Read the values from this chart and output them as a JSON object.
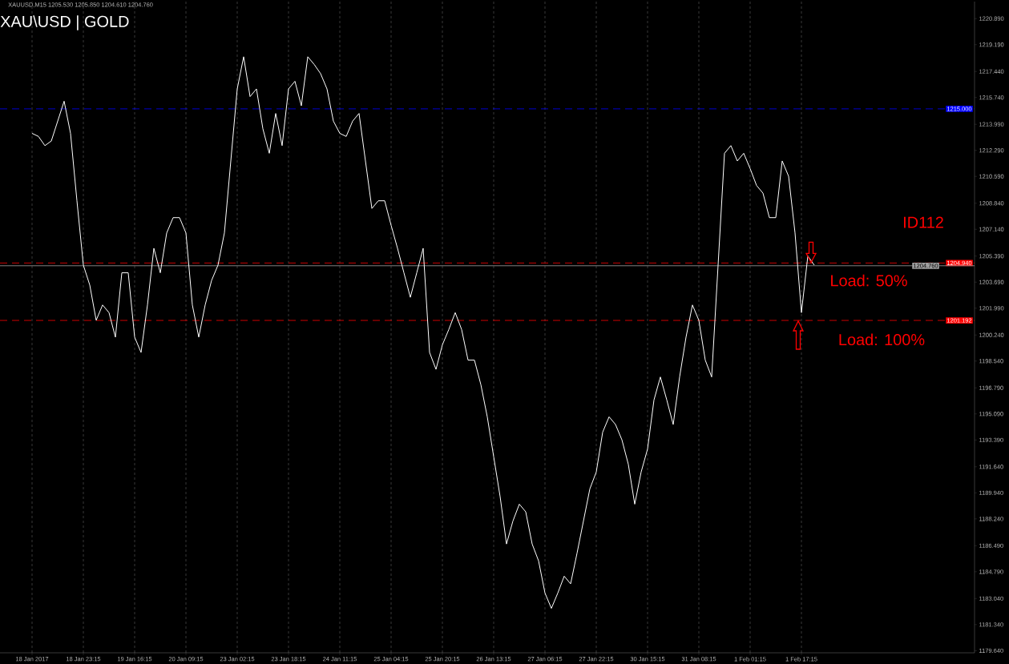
{
  "chart_data": {
    "type": "line",
    "title": "XAU\\USD | GOLD",
    "categories": [
      "18 Jan 2017",
      null,
      null,
      null,
      null,
      null,
      null,
      null,
      "18 Jan 23:15",
      null,
      null,
      null,
      null,
      null,
      null,
      null,
      "19 Jan 16:15",
      null,
      null,
      null,
      null,
      null,
      null,
      null,
      "20 Jan 09:15",
      null,
      null,
      null,
      null,
      null,
      null,
      null,
      "23 Jan 02:15",
      null,
      null,
      null,
      null,
      null,
      null,
      null,
      "23 Jan 18:15",
      null,
      null,
      null,
      null,
      null,
      null,
      null,
      "24 Jan 11:15",
      null,
      null,
      null,
      null,
      null,
      null,
      null,
      "25 Jan 04:15",
      null,
      null,
      null,
      null,
      null,
      null,
      null,
      "25 Jan 20:15",
      null,
      null,
      null,
      null,
      null,
      null,
      null,
      "26 Jan 13:15",
      null,
      null,
      null,
      null,
      null,
      null,
      null,
      "27 Jan 06:15",
      null,
      null,
      null,
      null,
      null,
      null,
      null,
      "27 Jan 22:15",
      null,
      null,
      null,
      null,
      null,
      null,
      null,
      "30 Jan 15:15",
      null,
      null,
      null,
      null,
      null,
      null,
      null,
      "31 Jan 08:15",
      null,
      null,
      null,
      null,
      null,
      null,
      null,
      "1 Feb 01:15",
      null,
      null,
      null,
      null,
      null,
      null,
      null,
      "1 Feb 17:15",
      null,
      null
    ],
    "series": [
      {
        "color": "#ffffff",
        "values": [
          1213.4,
          1213.2,
          1212.6,
          1212.9,
          1214.2,
          1215.5,
          1213.4,
          1209.0,
          1204.8,
          1203.5,
          1201.2,
          1202.2,
          1201.7,
          1200.1,
          1204.3,
          1204.3,
          1200.1,
          1199.1,
          1202.2,
          1205.9,
          1204.3,
          1206.9,
          1207.9,
          1207.9,
          1206.9,
          1202.2,
          1200.1,
          1202.2,
          1203.8,
          1204.8,
          1206.9,
          1211.6,
          1216.3,
          1218.4,
          1215.8,
          1216.3,
          1213.7,
          1212.1,
          1214.7,
          1212.6,
          1216.3,
          1216.8,
          1215.2,
          1218.4,
          1217.9,
          1217.3,
          1216.3,
          1214.2,
          1213.4,
          1213.2,
          1214.2,
          1214.7,
          1211.6,
          1208.5,
          1209.0,
          1209.0,
          1207.4,
          1205.9,
          1204.3,
          1202.7,
          1204.3,
          1205.9,
          1199.1,
          1198.0,
          1199.6,
          1200.6,
          1201.7,
          1200.6,
          1198.6,
          1198.6,
          1197.0,
          1194.9,
          1192.3,
          1189.7,
          1186.6,
          1188.1,
          1189.2,
          1188.7,
          1186.6,
          1185.5,
          1183.4,
          1182.4,
          1183.4,
          1184.5,
          1184.0,
          1186.0,
          1188.1,
          1190.2,
          1191.3,
          1193.9,
          1194.9,
          1194.4,
          1193.4,
          1191.8,
          1189.2,
          1191.3,
          1192.8,
          1196.0,
          1197.5,
          1196.0,
          1194.4,
          1197.5,
          1200.1,
          1202.2,
          1201.2,
          1198.6,
          1197.5,
          1204.8,
          1212.1,
          1212.6,
          1211.6,
          1212.1,
          1211.1,
          1210.0,
          1209.5,
          1207.9,
          1207.9,
          1211.6,
          1210.6,
          1206.9,
          1201.7,
          1205.4,
          1204.8
        ]
      }
    ],
    "ylim": [
      1179.5,
      1222.0
    ],
    "yticks": [
      {
        "value": 1220.89,
        "label": "1220.890"
      },
      {
        "value": 1219.19,
        "label": "1219.190"
      },
      {
        "value": 1217.44,
        "label": "1217.440"
      },
      {
        "value": 1215.74,
        "label": "1215.740"
      },
      {
        "value": 1213.99,
        "label": "1213.990"
      },
      {
        "value": 1212.29,
        "label": "1212.290"
      },
      {
        "value": 1210.59,
        "label": "1210.590"
      },
      {
        "value": 1208.84,
        "label": "1208.840"
      },
      {
        "value": 1207.14,
        "label": "1207.140"
      },
      {
        "value": 1205.39,
        "label": "1205.390"
      },
      {
        "value": 1203.69,
        "label": "1203.690"
      },
      {
        "value": 1201.99,
        "label": "1201.990"
      },
      {
        "value": 1200.24,
        "label": "1200.240"
      },
      {
        "value": 1198.54,
        "label": "1198.540"
      },
      {
        "value": 1196.79,
        "label": "1196.790"
      },
      {
        "value": 1195.09,
        "label": "1195.090"
      },
      {
        "value": 1193.39,
        "label": "1193.390"
      },
      {
        "value": 1191.64,
        "label": "1191.640"
      },
      {
        "value": 1189.94,
        "label": "1189.940"
      },
      {
        "value": 1188.24,
        "label": "1188.240"
      },
      {
        "value": 1186.49,
        "label": "1186.490"
      },
      {
        "value": 1184.79,
        "label": "1184.790"
      },
      {
        "value": 1183.04,
        "label": "1183.040"
      },
      {
        "value": 1181.34,
        "label": "1181.340"
      },
      {
        "value": 1179.64,
        "label": "1179.640"
      }
    ],
    "ref_lines": [
      {
        "axis": "y",
        "value": 1215.0,
        "label": "1215.000",
        "color": "#0000ff",
        "line_style": "dashed"
      },
      {
        "axis": "y",
        "value": 1204.94,
        "label": "1204.940",
        "color": "#ff0000",
        "line_style": "dashed"
      },
      {
        "axis": "y",
        "value": 1204.76,
        "label": "1204.760",
        "color": "#a0a0a0",
        "line_style": "solid"
      },
      {
        "axis": "y",
        "value": 1201.192,
        "label": "1201.192",
        "color": "#ff0000",
        "line_style": "dashed"
      }
    ],
    "annotations": [
      "XAUUSD,M15  1205.530 1205.850 1204.610 1204.760",
      "ID112",
      {
        "text": "Load: 50%",
        "y": 1204.94
      },
      {
        "text": "Load: 100%",
        "y": 1201.192
      }
    ],
    "grid": "x",
    "line_style": "solid"
  }
}
